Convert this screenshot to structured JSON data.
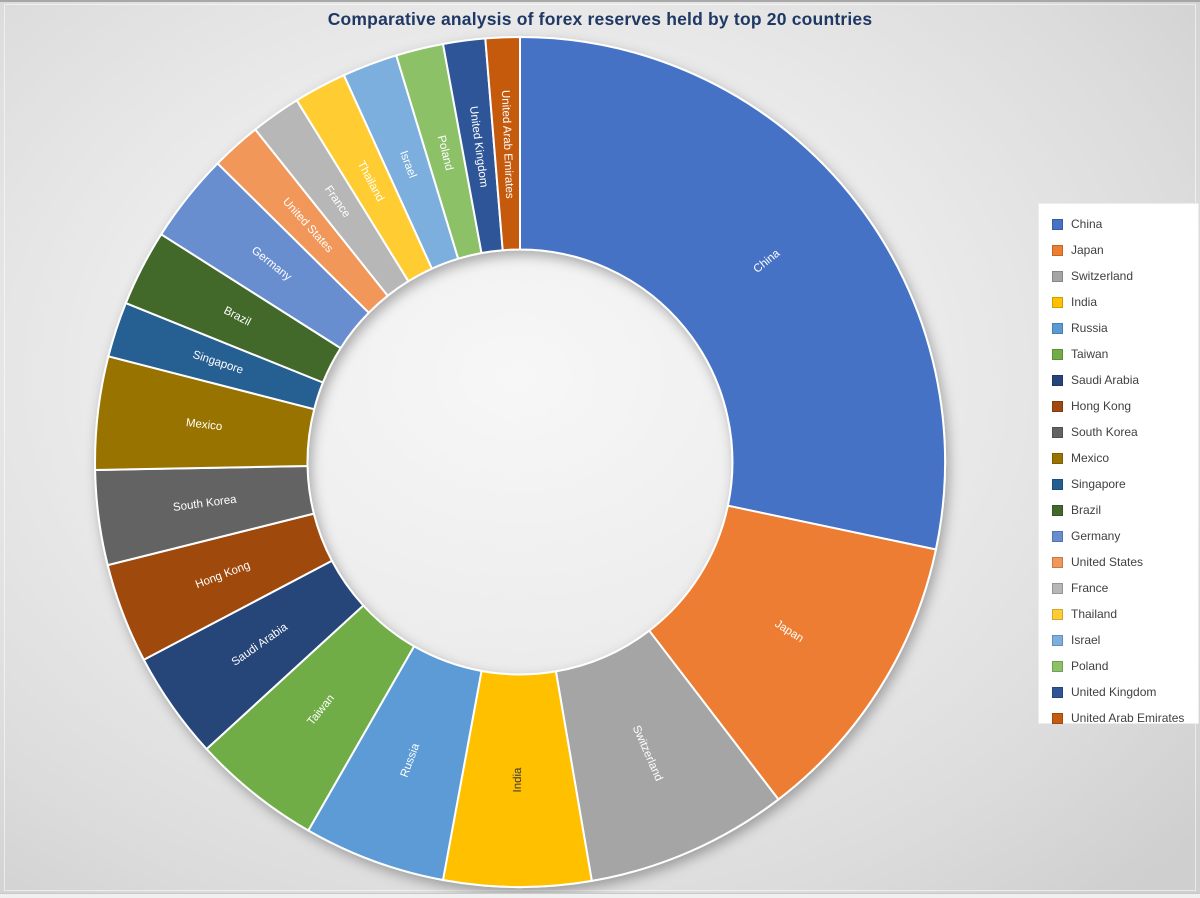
{
  "chart_data": {
    "type": "pie",
    "subtype": "doughnut",
    "title": "Comparative analysis of forex reserves held by top 20 countries",
    "categories": [
      "China",
      "Japan",
      "Switzerland",
      "India",
      "Russia",
      "Taiwan",
      "Saudi Arabia",
      "Hong Kong",
      "South Korea",
      "Mexico",
      "Singapore",
      "Brazil",
      "Germany",
      "United States",
      "France",
      "Thailand",
      "Israel",
      "Poland",
      "United Kingdom",
      "United Arab Emirates"
    ],
    "values_pct_of_total": [
      28.3,
      11.3,
      7.7,
      5.6,
      5.4,
      4.9,
      4.1,
      3.8,
      3.6,
      4.3,
      2.1,
      2.9,
      3.4,
      1.9,
      1.9,
      2.0,
      2.1,
      1.8,
      1.6,
      1.3
    ],
    "colors": [
      "#4472C4",
      "#ED7D31",
      "#A5A5A5",
      "#FFC000",
      "#5B9BD5",
      "#70AD47",
      "#264478",
      "#A0480F",
      "#636363",
      "#997300",
      "#255E91",
      "#43682B",
      "#698ED0",
      "#F1975A",
      "#B7B7B7",
      "#FFCD33",
      "#7CAFDD",
      "#8CC168",
      "#2F5597",
      "#C55A11"
    ],
    "label_colors": [
      "#FFFFFF",
      "#FFFFFF",
      "#FFFFFF",
      "#3A3A3A",
      "#FFFFFF",
      "#FFFFFF",
      "#FFFFFF",
      "#FFFFFF",
      "#FFFFFF",
      "#FFFFFF",
      "#FFFFFF",
      "#FFFFFF",
      "#FFFFFF",
      "#FFFFFF",
      "#FFFFFF",
      "#FFFFFF",
      "#FFFFFF",
      "#FFFFFF",
      "#FFFFFF",
      "#FFFFFF"
    ],
    "start_angle_deg": 0,
    "direction": "clockwise",
    "donut_hole_ratio": 0.5,
    "slice_labels_inside": true,
    "legend_position": "right",
    "title_color": "#1F3864",
    "separator_color": "#FFFFFF"
  },
  "layout_colors": {
    "background_light": "#F7F7F7",
    "background_dark": "#CFCFCF",
    "legend_background": "#FFFFFF",
    "legend_text": "#404040"
  }
}
